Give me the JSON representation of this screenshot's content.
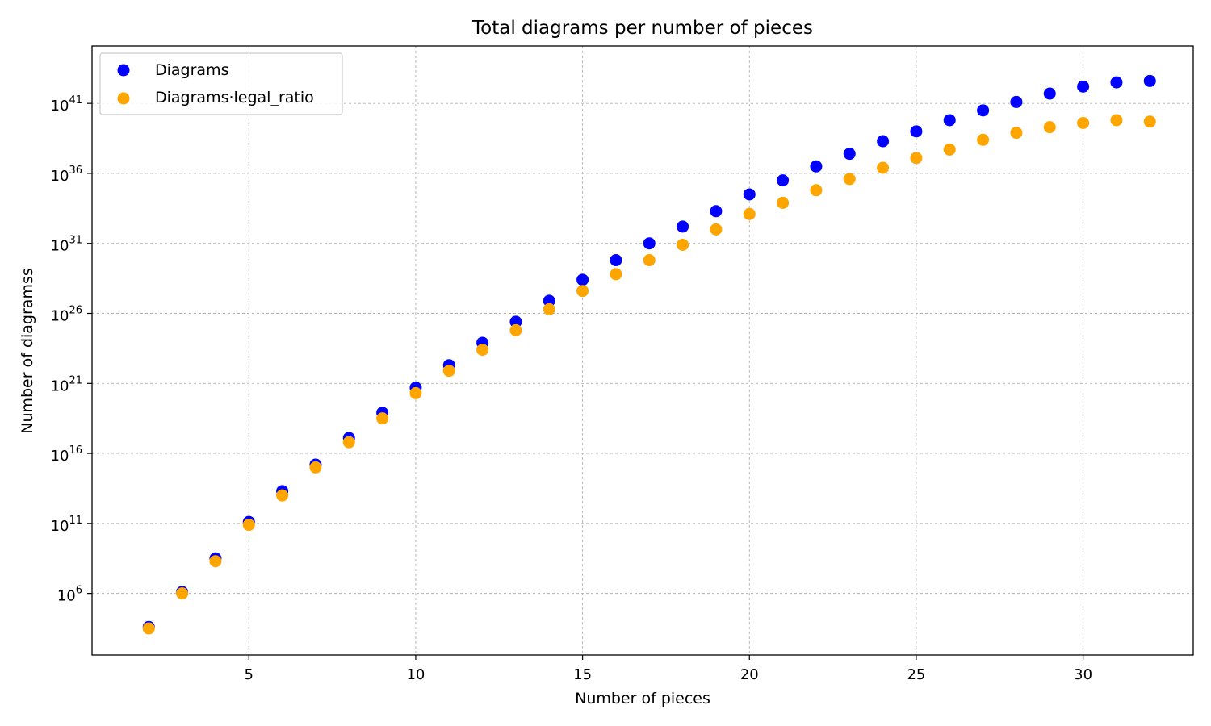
{
  "chart_data": {
    "type": "scatter",
    "title": "Total diagrams per number of pieces",
    "xlabel": "Number of pieces",
    "ylabel": "Number of diagramss",
    "yscale": "log",
    "xlim": [
      0.3,
      33.3
    ],
    "ylim_log10": [
      1.6,
      45.1
    ],
    "grid": true,
    "legend_position": "top-left",
    "x_ticks": [
      5,
      10,
      15,
      20,
      25,
      30
    ],
    "x_tick_labels": [
      "5",
      "10",
      "15",
      "20",
      "25",
      "30"
    ],
    "y_ticks_log10": [
      6,
      11,
      16,
      21,
      26,
      31,
      36,
      41
    ],
    "y_tick_labels": [
      {
        "base": "10",
        "exp": "6"
      },
      {
        "base": "10",
        "exp": "11"
      },
      {
        "base": "10",
        "exp": "16"
      },
      {
        "base": "10",
        "exp": "21"
      },
      {
        "base": "10",
        "exp": "26"
      },
      {
        "base": "10",
        "exp": "31"
      },
      {
        "base": "10",
        "exp": "36"
      },
      {
        "base": "10",
        "exp": "41"
      }
    ],
    "x": [
      2,
      3,
      4,
      5,
      6,
      7,
      8,
      9,
      10,
      11,
      12,
      13,
      14,
      15,
      16,
      17,
      18,
      19,
      20,
      21,
      22,
      23,
      24,
      25,
      26,
      27,
      28,
      29,
      30,
      31,
      32
    ],
    "series": [
      {
        "name": "Diagrams",
        "color": "#0000ff",
        "log10_values": [
          3.6,
          6.1,
          8.5,
          11.1,
          13.3,
          15.2,
          17.1,
          18.9,
          20.7,
          22.3,
          23.9,
          25.4,
          26.9,
          28.4,
          29.8,
          31.0,
          32.2,
          33.3,
          34.5,
          35.5,
          36.5,
          37.4,
          38.3,
          39.0,
          39.8,
          40.5,
          41.1,
          41.7,
          42.2,
          42.5,
          42.6
        ]
      },
      {
        "name": "Diagrams·legal_ratio",
        "color": "#ffa500",
        "log10_values": [
          3.5,
          6.0,
          8.3,
          10.9,
          13.0,
          15.0,
          16.8,
          18.5,
          20.3,
          21.9,
          23.4,
          24.8,
          26.3,
          27.6,
          28.8,
          29.8,
          30.9,
          32.0,
          33.1,
          33.9,
          34.8,
          35.6,
          36.4,
          37.1,
          37.7,
          38.4,
          38.9,
          39.3,
          39.6,
          39.8,
          39.7
        ]
      }
    ]
  }
}
